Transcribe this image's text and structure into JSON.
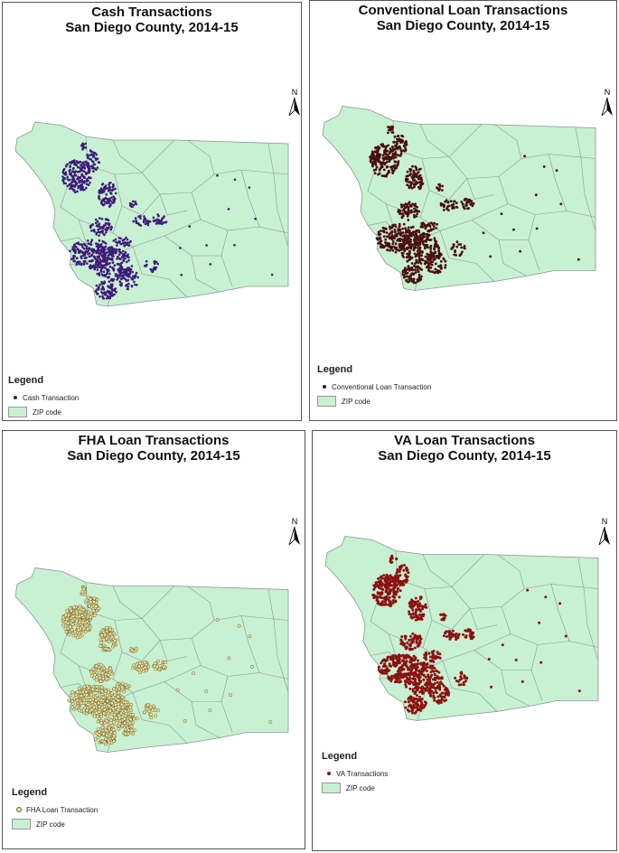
{
  "colors": {
    "land": "#c8f0d2",
    "boundary": "#8a9a90",
    "cash": "#3d1a7a",
    "conventional": "#4a0e0e",
    "fha": "#ece2a0",
    "fha_stroke": "#6b6230",
    "va": "#8c1010"
  },
  "north_label": "N",
  "legend_title": "Legend",
  "zip_label": "ZIP code",
  "panels": [
    {
      "title_1": "Cash Transactions",
      "title_2": "San Diego County, 2014-15",
      "legend_point_label": "Cash Transaction",
      "point_icon": "circle-dot-icon"
    },
    {
      "title_1": "Conventional Loan Transactions",
      "title_2": "San Diego County, 2014-15",
      "legend_point_label": "Conventional Loan Transaction",
      "point_icon": "circle-dot-icon"
    },
    {
      "title_1": "FHA Loan Transactions",
      "title_2": "San Diego County, 2014-15",
      "legend_point_label": "FHA Loan Transaction",
      "point_icon": "circle-dot-icon"
    },
    {
      "title_1": "VA Loan Transactions",
      "title_2": "San Diego County, 2014-15",
      "legend_point_label": "VA Transactions",
      "point_icon": "circle-dot-icon"
    }
  ]
}
